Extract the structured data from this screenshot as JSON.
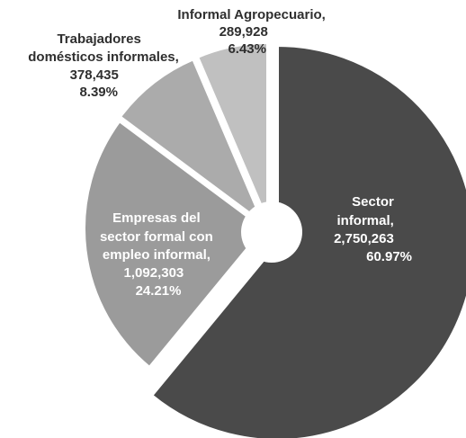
{
  "chart_data": {
    "type": "pie",
    "donut": true,
    "slices": [
      {
        "name": "Sector informal",
        "value": 2750263,
        "percent": 60.97,
        "color": "#4a4a4a",
        "label_lines": [
          "Sector",
          "informal,",
          "2,750,263",
          "60.97%"
        ]
      },
      {
        "name": "Empresas del sector formal con empleo informal",
        "value": 1092303,
        "percent": 24.21,
        "color": "#9b9b9b",
        "label_lines": [
          "Empresas del",
          "sector formal con",
          "empleo informal,",
          "1,092,303",
          "24.21%"
        ]
      },
      {
        "name": "Trabajadores domésticos informales",
        "value": 378435,
        "percent": 8.39,
        "color": "#ababab",
        "label_lines": [
          "Trabajadores",
          "domésticos informales,",
          "378,435",
          "8.39%"
        ]
      },
      {
        "name": "Informal Agropecuario",
        "value": 289928,
        "percent": 6.43,
        "color": "#c0c0c0",
        "label_lines": [
          "Informal Agropecuario,",
          "289,928",
          "6.43%"
        ]
      }
    ]
  }
}
